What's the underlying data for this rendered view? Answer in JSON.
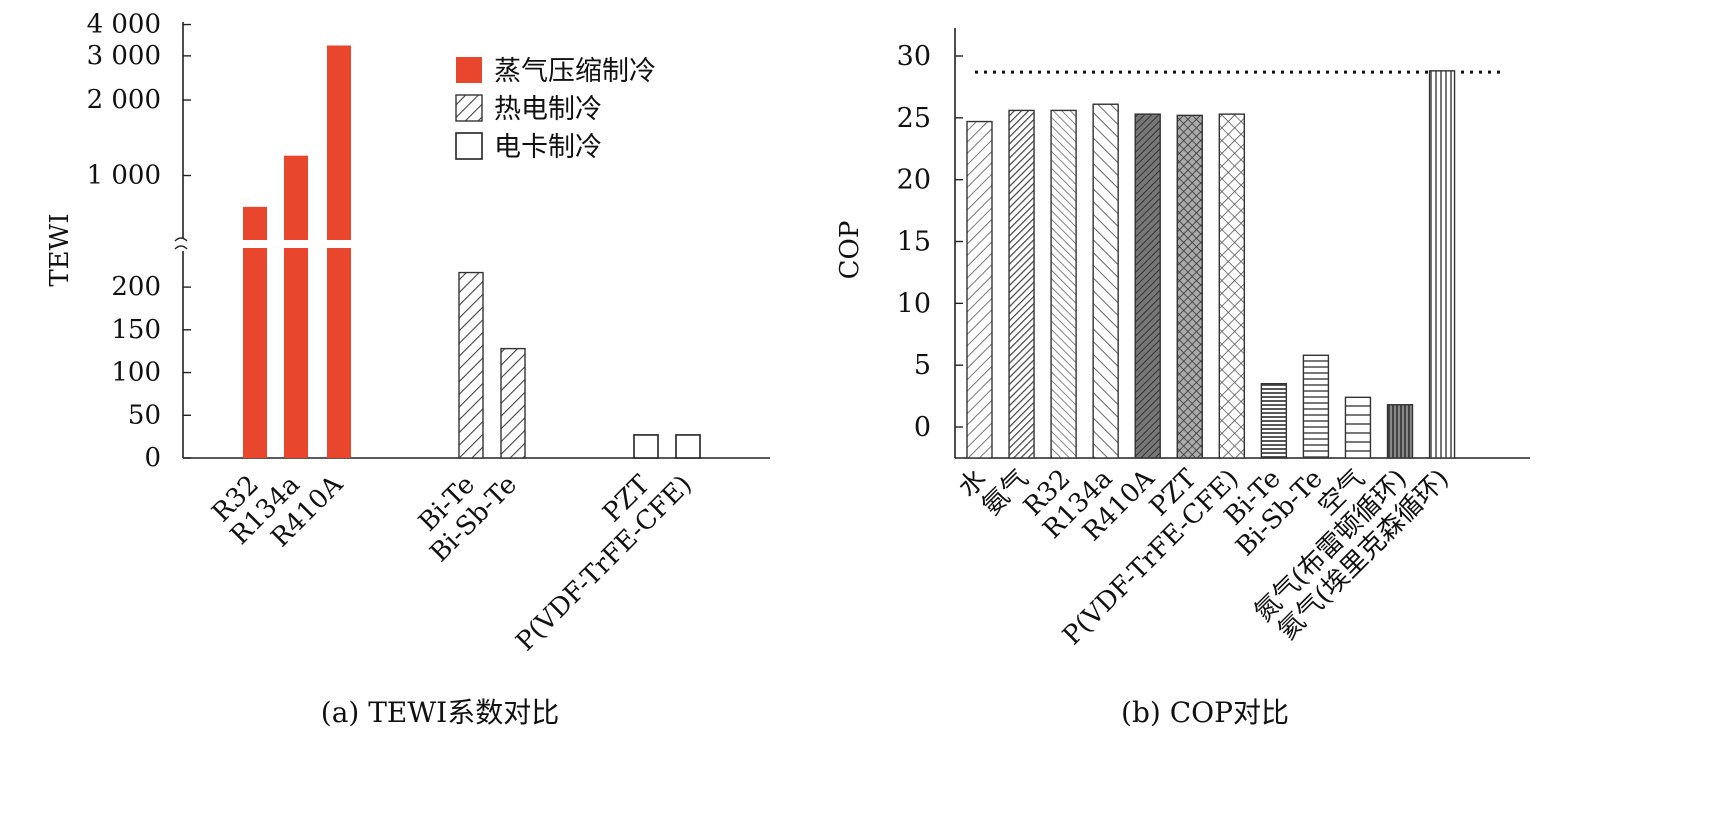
{
  "chart_data": [
    {
      "type": "bar",
      "caption": "(a) TEWI系数对比",
      "ylabel": "TEWI",
      "axis_break": true,
      "y_ticks_lower": [
        "0",
        "50",
        "100",
        "150",
        "200"
      ],
      "y_ticks_upper": [
        "1 000",
        "2 000",
        "3 000",
        "4 000"
      ],
      "legend_position": "top-right",
      "legend": [
        {
          "label": "蒸气压缩制冷",
          "fill": "solid",
          "color": "#e8472e"
        },
        {
          "label": "热电制冷",
          "fill": "hatch"
        },
        {
          "label": "电卡制冷",
          "fill": "empty"
        }
      ],
      "categories": [
        "R32",
        "R134a",
        "R410A",
        "Bi-Te",
        "Bi-Sb-Te",
        "PZT",
        "P(VDF-TrFE-CFE)"
      ],
      "group_of": [
        0,
        0,
        0,
        1,
        1,
        2,
        2
      ],
      "values": [
        750,
        1200,
        3300,
        217,
        128,
        27,
        27
      ]
    },
    {
      "type": "bar",
      "caption": "(b) COP对比",
      "ylabel": "COP",
      "ylim": [
        -2.5,
        30
      ],
      "y_ticks": [
        "0",
        "5",
        "10",
        "15",
        "20",
        "25",
        "30"
      ],
      "reference_line": 28.7,
      "categories": [
        "水",
        "氨气",
        "R32",
        "R134a",
        "R410A",
        "PZT",
        "P(VDF-TrFE-CFE)",
        "Bi-Te",
        "Bi-Sb-Te",
        "空气",
        "氮气(布雷顿循环)",
        "氦气(埃里克森循环)"
      ],
      "values": [
        24.7,
        25.6,
        25.6,
        26.1,
        25.3,
        25.2,
        25.3,
        3.5,
        5.8,
        2.4,
        1.8,
        28.8
      ],
      "patterns": [
        "diag-fine",
        "diag-dense",
        "diag-back",
        "diag-back-sparse",
        "diag-dark",
        "cross",
        "cross-sparse",
        "horiz-dense",
        "horiz",
        "horiz-sparse",
        "vert-dark",
        "vert"
      ]
    }
  ]
}
